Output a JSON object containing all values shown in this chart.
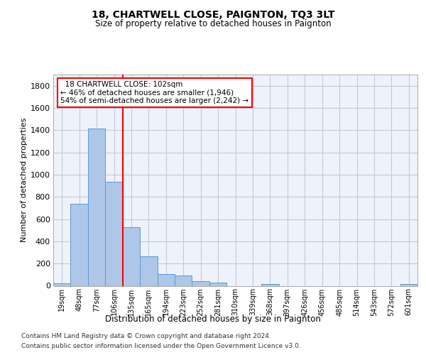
{
  "title1": "18, CHARTWELL CLOSE, PAIGNTON, TQ3 3LT",
  "title2": "Size of property relative to detached houses in Paignton",
  "xlabel": "Distribution of detached houses by size in Paignton",
  "ylabel": "Number of detached properties",
  "footnote1": "Contains HM Land Registry data © Crown copyright and database right 2024.",
  "footnote2": "Contains public sector information licensed under the Open Government Licence v3.0.",
  "annotation_line1": "  18 CHARTWELL CLOSE: 102sqm  ",
  "annotation_line2": "← 46% of detached houses are smaller (1,946)",
  "annotation_line3": "54% of semi-detached houses are larger (2,242) →",
  "bar_color": "#aec6e8",
  "bar_edge_color": "#5b9bd5",
  "grid_color": "#c8c8d8",
  "vline_color": "red",
  "vline_x_index": 3,
  "categories": [
    "19sqm",
    "48sqm",
    "77sqm",
    "106sqm",
    "135sqm",
    "165sqm",
    "194sqm",
    "223sqm",
    "252sqm",
    "281sqm",
    "310sqm",
    "339sqm",
    "368sqm",
    "397sqm",
    "426sqm",
    "456sqm",
    "485sqm",
    "514sqm",
    "543sqm",
    "572sqm",
    "601sqm"
  ],
  "values": [
    22,
    740,
    1415,
    935,
    530,
    265,
    105,
    93,
    42,
    28,
    0,
    0,
    18,
    0,
    0,
    0,
    0,
    0,
    0,
    0,
    18
  ],
  "ylim": [
    0,
    1900
  ],
  "yticks": [
    0,
    200,
    400,
    600,
    800,
    1000,
    1200,
    1400,
    1600,
    1800
  ],
  "background_color": "#ffffff",
  "plot_bg_color": "#eef2fb",
  "title1_fontsize": 10,
  "title2_fontsize": 8.5,
  "ylabel_fontsize": 8,
  "xlabel_fontsize": 8.5,
  "tick_fontsize": 8,
  "xtick_fontsize": 7,
  "footnote_fontsize": 6.5
}
